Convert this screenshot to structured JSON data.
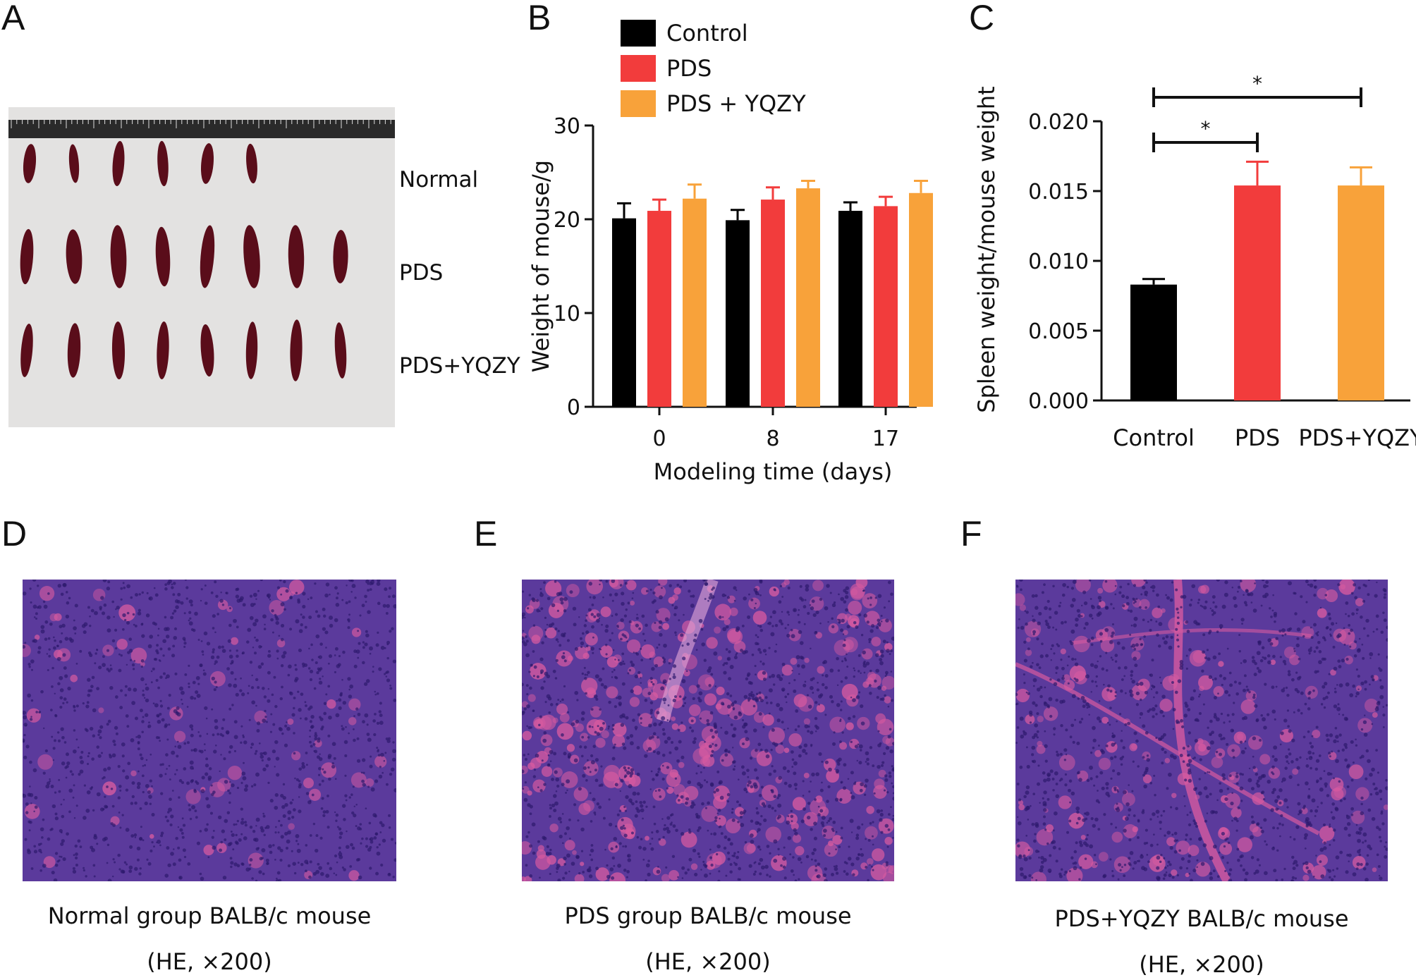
{
  "panels": {
    "a": "A",
    "b": "B",
    "c": "C",
    "d": "D",
    "e": "E",
    "f": "F"
  },
  "photo_labels": {
    "normal": "Normal",
    "pds": "PDS",
    "pds_yqzy": "PDS+YQZY"
  },
  "photo_colors": {
    "background": "#e3e2e1",
    "ruler": "#2a2a2a",
    "spleen": "#5a0d1a"
  },
  "captions": {
    "d_line1": "Normal group BALB/c mouse",
    "d_line2": "(HE, ×200)",
    "e_line1": "PDS group BALB/c mouse",
    "e_line2": "(HE, ×200)",
    "f_line1": "PDS+YQZY BALB/c mouse",
    "f_line2": "(HE, ×200)"
  },
  "histology_colors": {
    "base": "#5b3a9c",
    "nuclei": "#2e1a6e",
    "eosin": "#d65aa0"
  },
  "colors": {
    "control": "#000000",
    "pds": "#f23c3c",
    "pds_yqzy": "#f8a23a"
  },
  "chart_data": [
    {
      "type": "bar",
      "panel": "B",
      "categories": [
        "0",
        "8",
        "17"
      ],
      "series": [
        {
          "name": "Control",
          "values": [
            20.1,
            19.9,
            20.9
          ],
          "errors": [
            1.6,
            1.1,
            0.9
          ]
        },
        {
          "name": "PDS",
          "values": [
            20.9,
            22.1,
            21.4
          ],
          "errors": [
            1.2,
            1.3,
            1.0
          ]
        },
        {
          "name": "PDS + YQZY",
          "values": [
            22.2,
            23.3,
            22.8
          ],
          "errors": [
            1.5,
            0.8,
            1.3
          ]
        }
      ],
      "xlabel": "Modeling time (days)",
      "ylabel": "Weight of mouse/g",
      "ylim": [
        0,
        30
      ],
      "yticks": [
        "0",
        "10",
        "20",
        "30"
      ],
      "legend": "top"
    },
    {
      "type": "bar",
      "panel": "C",
      "categories": [
        "Control",
        "PDS",
        "PDS+YQZY"
      ],
      "values": [
        0.0083,
        0.0154,
        0.0154
      ],
      "errors": [
        0.0004,
        0.0017,
        0.0013
      ],
      "ylabel": "Spleen weight/mouse weight",
      "ylim": [
        0,
        0.02
      ],
      "yticks": [
        "0.000",
        "0.005",
        "0.010",
        "0.015",
        "0.020"
      ],
      "annotations": [
        {
          "from": "Control",
          "to": "PDS",
          "label": "*"
        },
        {
          "from": "Control",
          "to": "PDS+YQZY",
          "label": "*"
        }
      ]
    }
  ]
}
